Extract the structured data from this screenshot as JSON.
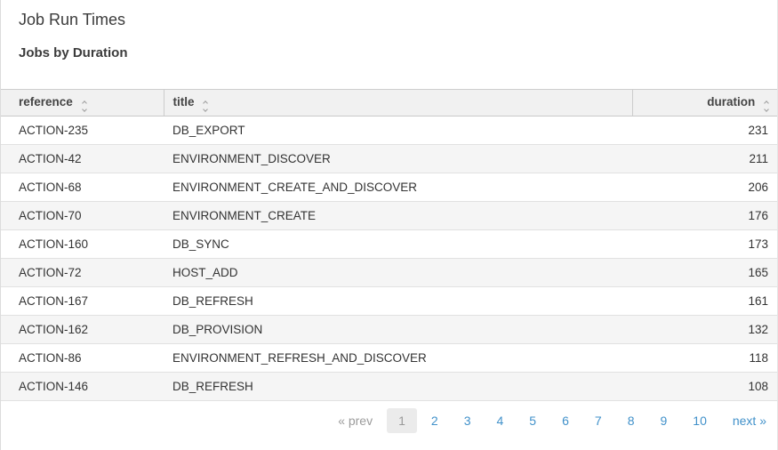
{
  "page": {
    "title": "Job Run Times",
    "subtitle": "Jobs by Duration"
  },
  "table": {
    "columns": [
      {
        "key": "reference",
        "label": "reference",
        "sortable": true,
        "align": "left"
      },
      {
        "key": "title",
        "label": "title",
        "sortable": true,
        "align": "left"
      },
      {
        "key": "duration",
        "label": "duration",
        "sortable": true,
        "align": "right"
      }
    ],
    "rows": [
      {
        "reference": "ACTION-235",
        "title": "DB_EXPORT",
        "duration": 231
      },
      {
        "reference": "ACTION-42",
        "title": "ENVIRONMENT_DISCOVER",
        "duration": 211
      },
      {
        "reference": "ACTION-68",
        "title": "ENVIRONMENT_CREATE_AND_DISCOVER",
        "duration": 206
      },
      {
        "reference": "ACTION-70",
        "title": "ENVIRONMENT_CREATE",
        "duration": 176
      },
      {
        "reference": "ACTION-160",
        "title": "DB_SYNC",
        "duration": 173
      },
      {
        "reference": "ACTION-72",
        "title": "HOST_ADD",
        "duration": 165
      },
      {
        "reference": "ACTION-167",
        "title": "DB_REFRESH",
        "duration": 161
      },
      {
        "reference": "ACTION-162",
        "title": "DB_PROVISION",
        "duration": 132
      },
      {
        "reference": "ACTION-86",
        "title": "ENVIRONMENT_REFRESH_AND_DISCOVER",
        "duration": 118
      },
      {
        "reference": "ACTION-146",
        "title": "DB_REFRESH",
        "duration": 108
      }
    ]
  },
  "pagination": {
    "prev_label": "« prev",
    "next_label": "next »",
    "current_page": "1",
    "pages": [
      "1",
      "2",
      "3",
      "4",
      "5",
      "6",
      "7",
      "8",
      "9",
      "10"
    ]
  },
  "colors": {
    "link_blue": "#4191ca",
    "header_bg": "#f1f1f1",
    "row_alt_bg": "#f5f5f5",
    "muted_gray": "#999999"
  }
}
